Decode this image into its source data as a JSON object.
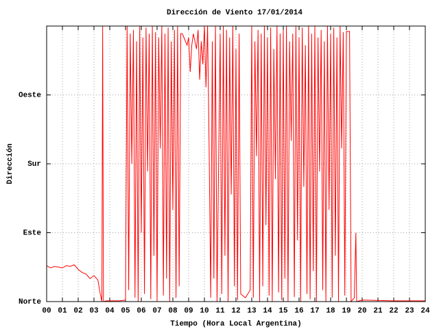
{
  "chart_data": {
    "type": "line",
    "title": "Dirección de Viento 17/01/2014",
    "x_label": "Tiempo (Hora Local Argentina)",
    "y_label": "Dirección",
    "color": "#ff0000",
    "grid": true,
    "xlim": [
      0,
      24
    ],
    "ylim": [
      0,
      360
    ],
    "xticks": [
      {
        "value": 0,
        "label": "00"
      },
      {
        "value": 1,
        "label": "01"
      },
      {
        "value": 2,
        "label": "02"
      },
      {
        "value": 3,
        "label": "03"
      },
      {
        "value": 4,
        "label": "04"
      },
      {
        "value": 5,
        "label": "05"
      },
      {
        "value": 6,
        "label": "06"
      },
      {
        "value": 7,
        "label": "07"
      },
      {
        "value": 8,
        "label": "08"
      },
      {
        "value": 9,
        "label": "09"
      },
      10,
      11,
      12,
      13,
      14,
      15,
      16,
      17,
      18,
      19,
      20,
      21,
      22,
      23,
      24
    ],
    "yticks": [
      {
        "value": 0,
        "label": "Norte"
      },
      {
        "value": 90,
        "label": "Este"
      },
      {
        "value": 180,
        "label": "Sur"
      },
      {
        "value": 270,
        "label": "Oeste"
      }
    ],
    "x": [
      0,
      0.25,
      0.5,
      0.75,
      1,
      1.25,
      1.5,
      1.75,
      2,
      2.25,
      2.5,
      2.75,
      3,
      3.25,
      3.4,
      3.5,
      3.55,
      3.6,
      3.8,
      4.2,
      4.6,
      5.0,
      5.1,
      5.2,
      5.3,
      5.4,
      5.5,
      5.6,
      5.7,
      5.8,
      5.9,
      6,
      6.1,
      6.2,
      6.3,
      6.4,
      6.5,
      6.6,
      6.7,
      6.8,
      6.9,
      7,
      7.1,
      7.2,
      7.3,
      7.4,
      7.5,
      7.6,
      7.7,
      7.8,
      7.9,
      8,
      8.1,
      8.2,
      8.3,
      8.4,
      8.5,
      8.6,
      8.7,
      8.8,
      8.9,
      9,
      9.1,
      9.2,
      9.3,
      9.4,
      9.5,
      9.6,
      9.7,
      9.8,
      9.9,
      10,
      10.1,
      10.2,
      10.3,
      10.4,
      10.5,
      10.6,
      10.7,
      10.8,
      10.9,
      11,
      11.1,
      11.2,
      11.3,
      11.4,
      11.5,
      11.6,
      11.7,
      11.8,
      11.9,
      12,
      12.1,
      12.2,
      12.3,
      12.6,
      12.9,
      13,
      13.1,
      13.2,
      13.3,
      13.4,
      13.5,
      13.6,
      13.7,
      13.8,
      13.9,
      14,
      14.1,
      14.2,
      14.3,
      14.4,
      14.5,
      14.6,
      14.7,
      14.8,
      14.9,
      15,
      15.1,
      15.2,
      15.3,
      15.4,
      15.5,
      15.6,
      15.7,
      15.8,
      15.9,
      16,
      16.1,
      16.2,
      16.3,
      16.4,
      16.5,
      16.6,
      16.7,
      16.8,
      16.9,
      17,
      17.1,
      17.2,
      17.3,
      17.4,
      17.5,
      17.6,
      17.7,
      17.8,
      17.9,
      18,
      18.1,
      18.2,
      18.3,
      18.4,
      18.5,
      18.6,
      18.7,
      18.8,
      18.9,
      19,
      19.1,
      19.2,
      19.3,
      19.5,
      19.6,
      19.65,
      20,
      22,
      24
    ],
    "values": [
      47,
      44,
      46,
      45,
      44,
      47,
      46,
      48,
      42,
      38,
      36,
      30,
      34,
      28,
      10,
      0,
      360,
      0,
      1,
      1,
      1,
      2,
      360,
      15,
      350,
      180,
      355,
      5,
      340,
      0,
      360,
      90,
      345,
      10,
      358,
      170,
      350,
      3,
      360,
      60,
      352,
      0,
      345,
      200,
      360,
      8,
      350,
      30,
      358,
      0,
      340,
      120,
      355,
      5,
      360,
      20,
      350,
      350,
      345,
      340,
      335,
      345,
      300,
      335,
      350,
      340,
      330,
      355,
      290,
      340,
      310,
      360,
      280,
      360,
      200,
      5,
      340,
      30,
      360,
      0,
      180,
      350,
      10,
      360,
      60,
      355,
      0,
      345,
      140,
      360,
      20,
      330,
      2,
      350,
      10,
      5,
      15,
      360,
      5,
      340,
      190,
      355,
      0,
      350,
      20,
      360,
      100,
      345,
      8,
      358,
      0,
      330,
      160,
      360,
      12,
      350,
      2,
      355,
      30,
      360,
      0,
      340,
      210,
      350,
      6,
      360,
      80,
      345,
      0,
      358,
      150,
      335,
      10,
      360,
      3,
      350,
      40,
      360,
      0,
      345,
      170,
      355,
      15,
      340,
      0,
      360,
      120,
      350,
      5,
      358,
      60,
      345,
      0,
      360,
      200,
      352,
      8,
      353,
      353,
      353,
      0,
      5,
      90,
      0,
      2,
      1,
      1
    ]
  }
}
